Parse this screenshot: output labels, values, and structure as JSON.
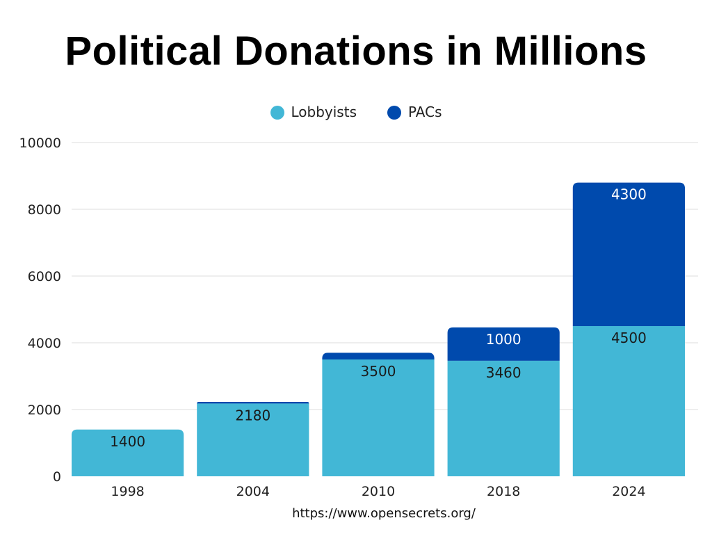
{
  "chart_data": {
    "type": "bar",
    "stacked": true,
    "title": "Political Donations in Millions",
    "categories": [
      "1998",
      "2004",
      "2010",
      "2018",
      "2024"
    ],
    "series": [
      {
        "name": "Lobbyists",
        "color": "#42B7D6",
        "values": [
          1400,
          2180,
          3500,
          3460,
          4500
        ],
        "labels": [
          "1400",
          "2180",
          "3500",
          "3460",
          "4500"
        ]
      },
      {
        "name": "PACs",
        "color": "#004AAD",
        "values": [
          0,
          50,
          200,
          1000,
          4300
        ],
        "labels": [
          "",
          "",
          "",
          "1000",
          "4300"
        ]
      }
    ],
    "ylim": [
      0,
      10000
    ],
    "yticks": [
      "0",
      "2000",
      "4000",
      "6000",
      "8000",
      "10000"
    ],
    "grid": true,
    "legend_position": "top-center"
  },
  "source": "https://www.opensecrets.org/"
}
